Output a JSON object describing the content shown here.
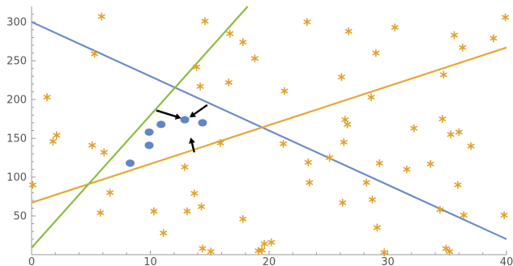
{
  "chart_data": {
    "type": "scatter",
    "xlim": [
      0,
      40
    ],
    "ylim": [
      0,
      320
    ],
    "x_ticks": [
      "0",
      "10",
      "20",
      "30",
      "40"
    ],
    "y_ticks": [
      "50",
      "100",
      "150",
      "200",
      "250",
      "300"
    ],
    "grid": false,
    "colors": {
      "stars": "#e0a02a",
      "dots": "#5f87c4",
      "line_blue": "#6a8cc8",
      "line_orange": "#e8a735",
      "line_green": "#8fbc3f",
      "arrows": "#000000",
      "axis": "#9a9a9a"
    },
    "lines": [
      {
        "color_key": "line_blue",
        "x": [
          0,
          40
        ],
        "y": [
          300,
          20
        ]
      },
      {
        "color_key": "line_orange",
        "x": [
          0,
          40
        ],
        "y": [
          67,
          267
        ]
      },
      {
        "color_key": "line_green",
        "x": [
          0,
          18.2
        ],
        "y": [
          9,
          320
        ]
      }
    ],
    "dots": {
      "x": [
        8.3,
        9.9,
        9.9,
        10.9,
        12.9,
        14.4
      ],
      "y": [
        118,
        141,
        158,
        168,
        174,
        170
      ]
    },
    "arrows": [
      {
        "x": [
          10.5,
          12.6
        ],
        "y": [
          186,
          176
        ]
      },
      {
        "x": [
          14.8,
          13.3
        ],
        "y": [
          193,
          177
        ]
      },
      {
        "x": [
          13.7,
          13.4
        ],
        "y": [
          132,
          151
        ]
      }
    ],
    "stars": {
      "x": [
        0.1,
        1.3,
        1.8,
        2.1,
        5.1,
        5.3,
        5.8,
        5.9,
        6.1,
        6.6,
        10.3,
        11.1,
        12.9,
        13.1,
        13.7,
        13.9,
        14.2,
        14.3,
        14.4,
        14.6,
        15.1,
        15.9,
        16.6,
        16.7,
        17.8,
        17.8,
        18.8,
        19.1,
        19.4,
        19.6,
        20.2,
        21.2,
        21.3,
        23.2,
        23.3,
        23.4,
        25.1,
        26.1,
        26.2,
        26.3,
        26.4,
        26.6,
        26.7,
        28.2,
        28.6,
        28.7,
        29.0,
        29.1,
        29.3,
        29.7,
        30.6,
        31.6,
        32.2,
        33.6,
        34.4,
        34.6,
        34.7,
        34.9,
        35.2,
        35.3,
        35.6,
        35.9,
        36.0,
        36.3,
        36.4,
        37.0,
        38.9,
        39.8,
        39.9
      ],
      "y": [
        90,
        203,
        146,
        154,
        141,
        259,
        54,
        307,
        132,
        80,
        56,
        28,
        113,
        56,
        79,
        242,
        217,
        62,
        8,
        301,
        4,
        144,
        222,
        285,
        46,
        274,
        253,
        5,
        6,
        14,
        16,
        143,
        211,
        300,
        119,
        93,
        125,
        229,
        67,
        145,
        174,
        168,
        288,
        93,
        203,
        71,
        260,
        35,
        118,
        3,
        293,
        110,
        163,
        117,
        58,
        175,
        232,
        8,
        4,
        155,
        283,
        90,
        158,
        267,
        51,
        140,
        279,
        51,
        306
      ]
    }
  }
}
